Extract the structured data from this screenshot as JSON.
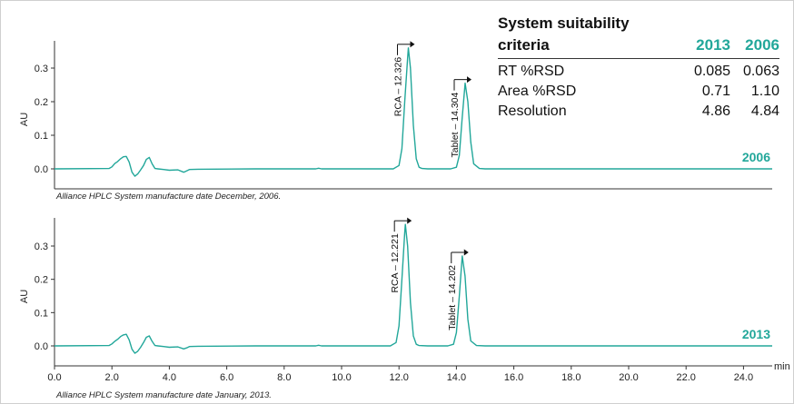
{
  "chart_data": [
    {
      "type": "line",
      "title": "",
      "xlabel": "",
      "ylabel": "AU",
      "xlim": [
        0,
        25
      ],
      "ylim": [
        -0.03,
        0.39
      ],
      "yticks": [
        "0.0",
        "0.1",
        "0.2",
        "0.3"
      ],
      "series": [
        {
          "name": "2006",
          "x": [
            0,
            1.9,
            2.0,
            2.1,
            2.2,
            2.3,
            2.4,
            2.5,
            2.6,
            2.7,
            2.8,
            2.9,
            3.0,
            3.1,
            3.2,
            3.3,
            3.4,
            3.5,
            3.6,
            3.8,
            4.0,
            4.3,
            4.5,
            4.6,
            4.7,
            5.0,
            7.0,
            9.1,
            9.2,
            9.3,
            11.8,
            12.0,
            12.1,
            12.2,
            12.3,
            12.326,
            12.4,
            12.5,
            12.6,
            12.7,
            12.8,
            13.0,
            13.8,
            14.0,
            14.1,
            14.2,
            14.304,
            14.4,
            14.5,
            14.6,
            14.8,
            15.0,
            25.0
          ],
          "y": [
            0,
            0.001,
            0.006,
            0.016,
            0.022,
            0.03,
            0.036,
            0.037,
            0.02,
            -0.01,
            -0.022,
            -0.015,
            -0.003,
            0.01,
            0.028,
            0.034,
            0.015,
            0.001,
            0.0,
            -0.002,
            -0.004,
            -0.003,
            -0.01,
            -0.006,
            -0.002,
            -0.001,
            0.0,
            0.0,
            0.002,
            0.0,
            0.0,
            0.01,
            0.06,
            0.2,
            0.33,
            0.36,
            0.3,
            0.13,
            0.03,
            0.005,
            0.001,
            0.0,
            0.0,
            0.005,
            0.04,
            0.15,
            0.255,
            0.2,
            0.08,
            0.015,
            0.001,
            0.0,
            0.0
          ]
        }
      ],
      "annotations": [
        {
          "text": "RCA – 12.326",
          "x": 12.326
        },
        {
          "text": "Tablet – 14.304",
          "x": 14.304
        }
      ],
      "series_label": "2006",
      "caption": "Alliance HPLC System manufacture date December, 2006."
    },
    {
      "type": "line",
      "title": "",
      "xlabel": "min",
      "ylabel": "AU",
      "xlim": [
        0,
        25
      ],
      "ylim": [
        -0.03,
        0.39
      ],
      "yticks": [
        "0.0",
        "0.1",
        "0.2",
        "0.3"
      ],
      "xticks": [
        "0.0",
        "2.0",
        "4.0",
        "6.0",
        "8.0",
        "10.0",
        "12.0",
        "14.0",
        "16.0",
        "18.0",
        "20.0",
        "22.0",
        "24.0"
      ],
      "series": [
        {
          "name": "2013",
          "x": [
            0,
            1.9,
            2.0,
            2.1,
            2.2,
            2.3,
            2.4,
            2.5,
            2.6,
            2.7,
            2.8,
            2.9,
            3.0,
            3.1,
            3.2,
            3.3,
            3.4,
            3.5,
            3.6,
            3.8,
            4.0,
            4.3,
            4.5,
            4.6,
            4.7,
            5.0,
            7.0,
            9.1,
            9.2,
            9.3,
            11.7,
            11.9,
            12.0,
            12.1,
            12.2,
            12.221,
            12.3,
            12.4,
            12.5,
            12.6,
            12.7,
            13.0,
            13.7,
            13.9,
            14.0,
            14.1,
            14.202,
            14.3,
            14.4,
            14.5,
            14.7,
            15.0,
            25.0
          ],
          "y": [
            0,
            0.001,
            0.006,
            0.014,
            0.02,
            0.028,
            0.033,
            0.035,
            0.018,
            -0.01,
            -0.022,
            -0.016,
            -0.004,
            0.01,
            0.026,
            0.03,
            0.014,
            0.001,
            0.0,
            -0.002,
            -0.004,
            -0.003,
            -0.009,
            -0.006,
            -0.002,
            -0.001,
            0.0,
            0.0,
            0.002,
            0.0,
            0.0,
            0.01,
            0.06,
            0.2,
            0.34,
            0.365,
            0.3,
            0.13,
            0.03,
            0.005,
            0.001,
            0.0,
            0.0,
            0.005,
            0.04,
            0.15,
            0.27,
            0.21,
            0.08,
            0.015,
            0.001,
            0.0,
            0.0
          ]
        }
      ],
      "annotations": [
        {
          "text": "RCA – 12.221",
          "x": 12.221
        },
        {
          "text": "Tablet – 14.202",
          "x": 14.202
        }
      ],
      "series_label": "2013",
      "caption": "Alliance HPLC System manufacture date January, 2013."
    }
  ],
  "suitability": {
    "title": "System suitability",
    "header": [
      "criteria",
      "2013",
      "2006"
    ],
    "rows": [
      [
        "RT %RSD",
        "0.085",
        "0.063"
      ],
      [
        "Area %RSD",
        "0.71",
        "1.10"
      ],
      [
        "Resolution",
        "4.86",
        "4.84"
      ]
    ]
  },
  "colors": {
    "trace": "#22a79a",
    "year_label": "#22a79a",
    "axis": "#333333"
  }
}
